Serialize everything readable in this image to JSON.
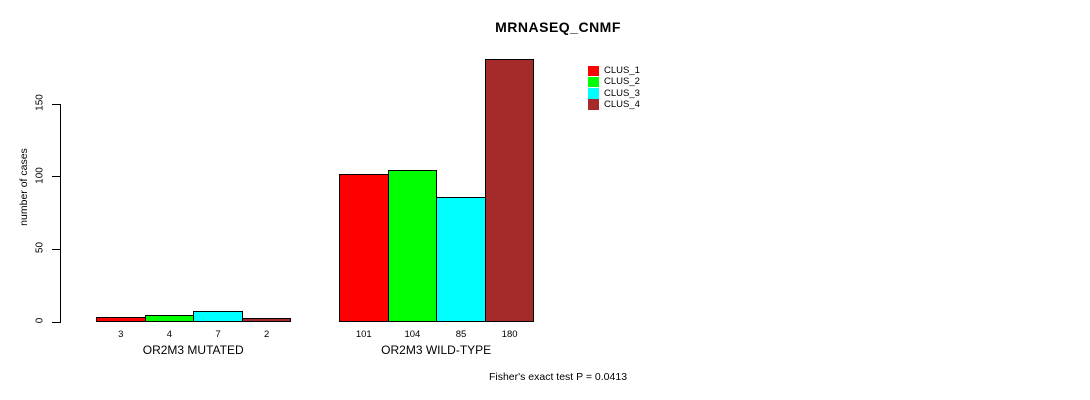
{
  "title": "MRNASEQ_CNMF",
  "footer": "Fisher's exact test P = 0.0413",
  "y_axis": {
    "label": "number of cases",
    "tick_labels": [
      "0",
      "50",
      "100",
      "150"
    ]
  },
  "legend": {
    "items": [
      {
        "label": "CLUS_1",
        "color": "#ff0000"
      },
      {
        "label": "CLUS_2",
        "color": "#00ff00"
      },
      {
        "label": "CLUS_3",
        "color": "#00ffff"
      },
      {
        "label": "CLUS_4",
        "color": "#a52a2a"
      }
    ]
  },
  "chart_data": {
    "type": "bar",
    "title": "MRNASEQ_CNMF",
    "categories": [
      "OR2M3 MUTATED",
      "OR2M3 WILD-TYPE"
    ],
    "series": [
      {
        "name": "CLUS_1",
        "color": "#ff0000",
        "values": [
          3,
          101
        ]
      },
      {
        "name": "CLUS_2",
        "color": "#00ff00",
        "values": [
          4,
          104
        ]
      },
      {
        "name": "CLUS_3",
        "color": "#00ffff",
        "values": [
          7,
          85
        ]
      },
      {
        "name": "CLUS_4",
        "color": "#a52a2a",
        "values": [
          2,
          180
        ]
      }
    ],
    "xlabel": "",
    "ylabel": "number of cases",
    "ylim": [
      0,
      185
    ],
    "yticks": [
      0,
      50,
      100,
      150
    ],
    "grid": false,
    "legend_position": "top-right",
    "bar_value_labels": true,
    "annotation": "Fisher's exact test P = 0.0413"
  }
}
